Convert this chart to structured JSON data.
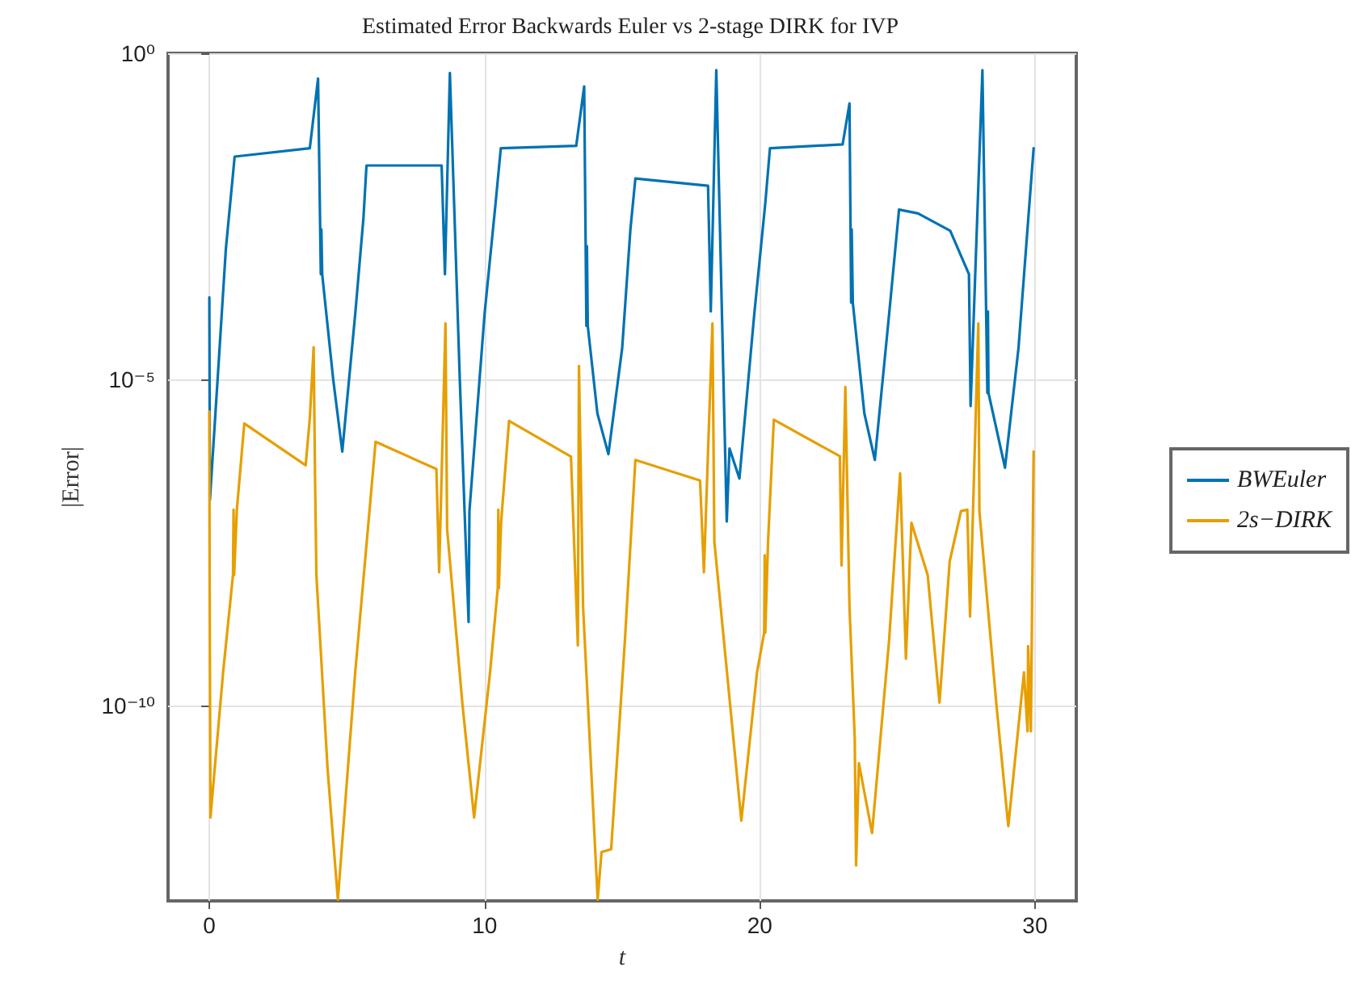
{
  "chart_data": {
    "type": "line",
    "title": "Estimated Error Backwards Euler vs 2-stage DIRK for IVP",
    "xlabel": "t",
    "ylabel": "|Error|",
    "xlim": [
      -1.5,
      31.5
    ],
    "xticks": [
      0,
      10,
      20,
      30
    ],
    "ylim": [
      1e-13,
      1
    ],
    "yticks": [
      {
        "value": 1,
        "label": "10⁰"
      },
      {
        "value": 1e-05,
        "label": "10⁻⁵"
      },
      {
        "value": 1e-10,
        "label": "10⁻¹⁰"
      }
    ],
    "log": "y",
    "grid": true,
    "legend": "right",
    "series": [
      {
        "name": "BWEuler",
        "color": "#0072b2",
        "x": [
          0,
          0.02,
          0.3,
          0.6,
          0.92,
          3.65,
          3.95,
          4.05,
          4.07,
          4.1,
          4.5,
          4.83,
          5.3,
          5.6,
          5.71,
          8.44,
          8.56,
          8.74,
          9.1,
          9.42,
          9.45,
          10.0,
          10.4,
          10.59,
          13.33,
          13.62,
          13.7,
          13.72,
          13.75,
          14.1,
          14.5,
          15.0,
          15.3,
          15.48,
          18.12,
          18.22,
          18.42,
          18.8,
          18.9,
          19.26,
          19.8,
          20.2,
          20.37,
          23.01,
          23.26,
          23.32,
          23.34,
          23.38,
          23.8,
          24.18,
          24.7,
          25.06,
          25.75,
          26.92,
          27.6,
          27.66,
          28.09,
          28.27,
          28.29,
          28.31,
          28.91,
          29.4,
          29.95
        ],
        "values": [
          0.00018,
          1.4e-07,
          1e-05,
          0.001,
          0.026,
          0.035,
          0.41,
          0.00041,
          0.002,
          0.00041,
          1e-05,
          7.8e-07,
          0.0001,
          0.003,
          0.019,
          0.019,
          0.00041,
          0.5,
          1e-05,
          1.9e-09,
          9.5e-08,
          0.0001,
          0.005,
          0.035,
          0.038,
          0.31,
          6.6e-05,
          0.0011,
          6.6e-05,
          3e-06,
          7.1e-07,
          3e-05,
          0.002,
          0.012,
          0.0093,
          0.00011,
          0.55,
          6.6e-08,
          8.7e-07,
          3e-07,
          0.0001,
          0.005,
          0.035,
          0.04,
          0.17,
          0.00015,
          0.002,
          0.00015,
          3e-06,
          5.8e-07,
          0.0001,
          0.004,
          0.0035,
          0.0019,
          0.00041,
          3.9e-06,
          0.55,
          6.2e-06,
          0.00011,
          6.2e-06,
          4.4e-07,
          3e-05,
          0.035
        ]
      },
      {
        "name": "2s−DIRK",
        "color": "#e69f00",
        "x": [
          0,
          0.01,
          0.04,
          0.5,
          0.86,
          0.88,
          0.9,
          1.0,
          1.27,
          3.5,
          3.65,
          3.79,
          3.84,
          3.89,
          4.3,
          4.67,
          5.3,
          6.04,
          8.25,
          8.35,
          8.58,
          8.64,
          9.2,
          9.62,
          10.2,
          10.48,
          10.5,
          10.52,
          10.6,
          10.89,
          13.14,
          13.39,
          13.43,
          13.58,
          14.11,
          14.25,
          14.6,
          15.1,
          15.48,
          17.83,
          17.97,
          18.28,
          18.35,
          19.33,
          19.9,
          20.16,
          20.18,
          20.2,
          20.3,
          20.51,
          22.91,
          22.97,
          23.11,
          23.26,
          23.45,
          23.5,
          23.6,
          24.08,
          24.7,
          25.1,
          25.31,
          25.51,
          26.1,
          26.53,
          26.9,
          27.31,
          27.54,
          27.64,
          27.94,
          27.98,
          28.6,
          29.03,
          29.6,
          29.73,
          29.75,
          29.85,
          29.95
        ],
        "values": [
          3.2e-06,
          9.1e-09,
          1.9e-12,
          3.2e-10,
          1e-08,
          1e-07,
          1e-08,
          1e-07,
          2.1e-06,
          4.8e-07,
          2.5e-06,
          3.1e-05,
          3.2e-07,
          9.8e-09,
          1e-11,
          1.05e-13,
          3.2e-10,
          1.1e-06,
          4.2e-07,
          1.1e-08,
          7.2e-05,
          5e-08,
          1e-10,
          1.9e-12,
          3.2e-10,
          6.3e-09,
          1e-07,
          6.3e-09,
          6.3e-08,
          2.3e-06,
          6.5e-07,
          8.3e-10,
          1.6e-05,
          3.2e-09,
          1.05e-13,
          5.6e-13,
          6.2e-13,
          1e-09,
          5.8e-07,
          2.8e-07,
          1.1e-08,
          7.2e-05,
          3.2e-08,
          1.7e-12,
          3.2e-10,
          1.3e-09,
          2e-08,
          1.3e-09,
          3.2e-08,
          2.4e-06,
          6.6e-07,
          1.4e-08,
          7.6e-06,
          3.2e-09,
          3.2e-11,
          3.5e-13,
          1.3e-11,
          1.1e-12,
          1e-09,
          3.6e-07,
          5.2e-10,
          6.3e-08,
          1e-08,
          1.1e-10,
          1.6e-08,
          9.5e-08,
          1e-07,
          2.3e-09,
          7.2e-05,
          9.5e-08,
          1e-10,
          1.4e-12,
          3.2e-10,
          4e-11,
          8.1e-10,
          4e-11,
          7.8e-07
        ]
      }
    ]
  }
}
